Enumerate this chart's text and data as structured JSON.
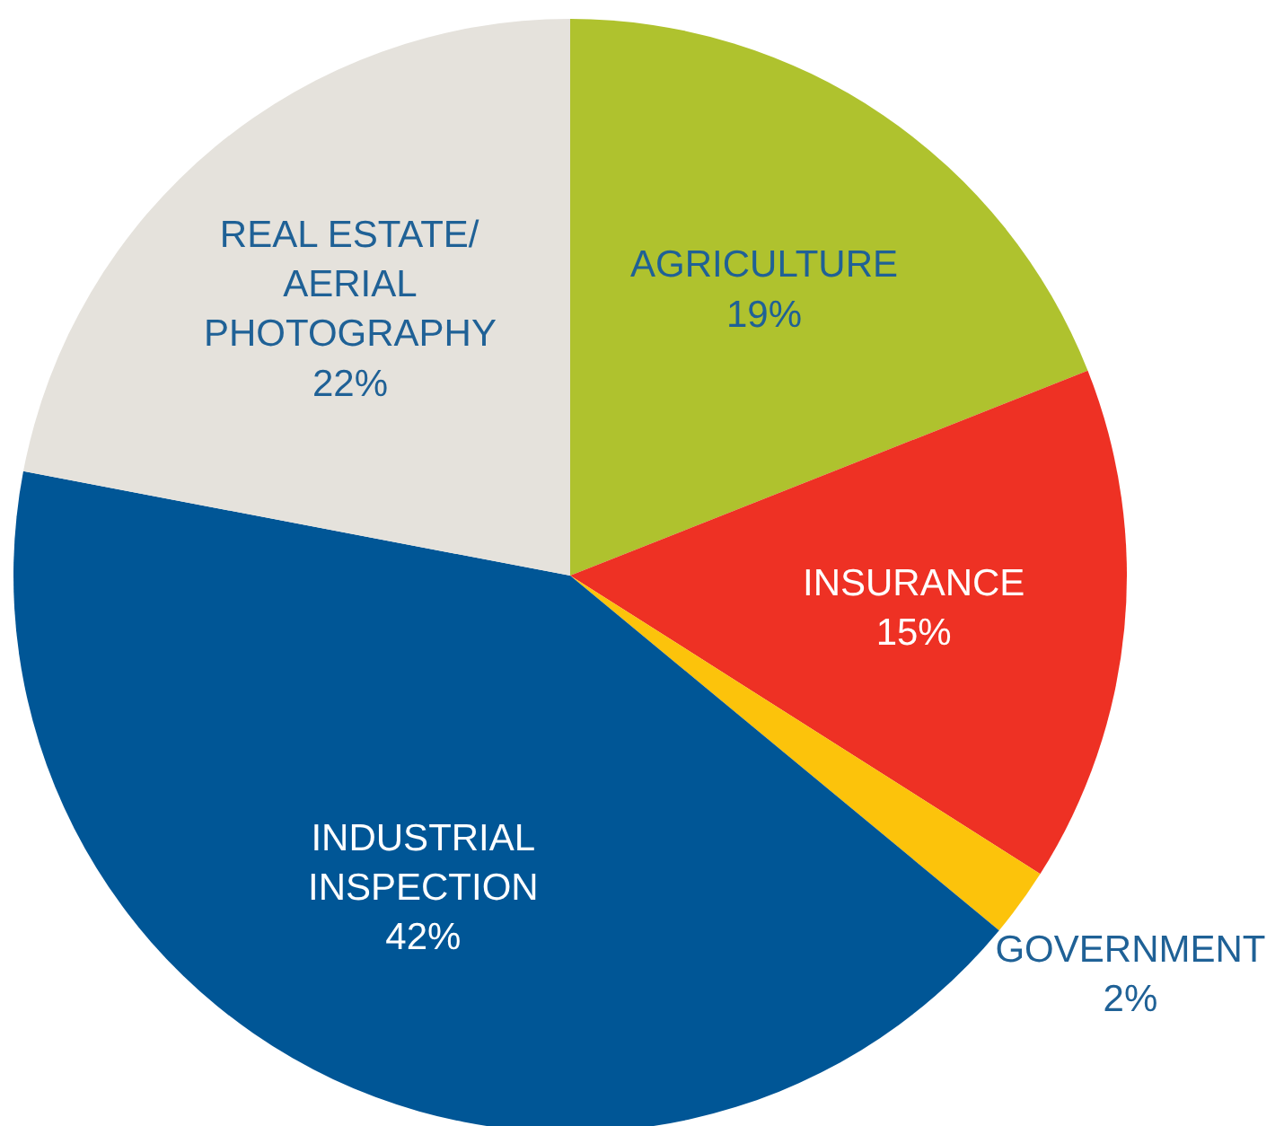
{
  "chart_data": {
    "type": "pie",
    "categories": [
      "AGRICULTURE",
      "INSURANCE",
      "GOVERNMENT",
      "INDUSTRIAL INSPECTION",
      "REAL ESTATE/ AERIAL PHOTOGRAPHY"
    ],
    "values": [
      19,
      15,
      2,
      42,
      22
    ],
    "value_labels": [
      "19%",
      "15%",
      "2%",
      "42%",
      "22%"
    ],
    "colors": [
      "#afc22e",
      "#ee3124",
      "#fcc30b",
      "#005696",
      "#e5e2dc"
    ]
  }
}
